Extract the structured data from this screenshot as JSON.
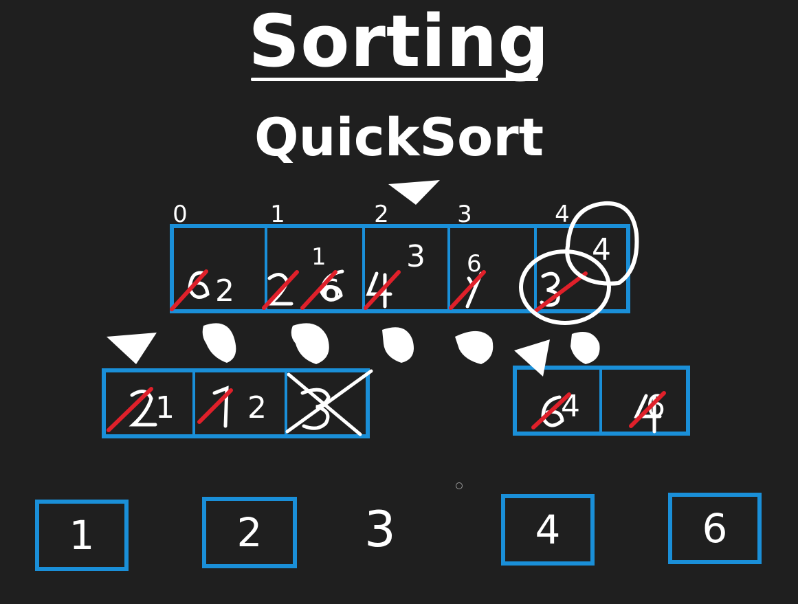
{
  "title": "Sorting",
  "subtitle": "QuickSort",
  "indices": [
    "0",
    "1",
    "2",
    "3",
    "4"
  ],
  "main_array": {
    "cells": [
      {
        "current": "2"
      },
      {
        "current": "6",
        "above": "1"
      },
      {
        "current": "",
        "above": "3"
      },
      {
        "current": "",
        "above": "6"
      },
      {
        "current": "",
        "pivot": "4"
      }
    ]
  },
  "left_sub_array": {
    "cells": [
      {
        "current": "1"
      },
      {
        "current": "2"
      },
      {
        "current": ""
      }
    ]
  },
  "right_sub_array": {
    "cells": [
      {
        "current": "4"
      },
      {
        "current": "6"
      }
    ]
  },
  "result": {
    "boxes": [
      "1",
      "2",
      "4",
      "6"
    ],
    "pivot_value": "3"
  },
  "colors": {
    "background": "#1f1f1f",
    "box": "#1a8fd8",
    "strike": "#e0202a",
    "ink": "#ffffff"
  }
}
